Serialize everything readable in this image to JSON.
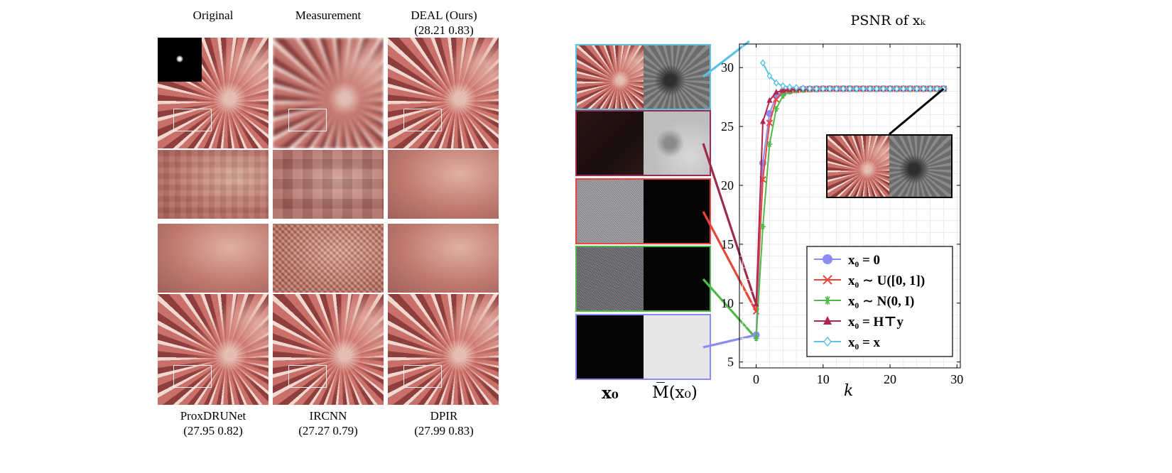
{
  "left_panel": {
    "top_titles": [
      "Original",
      "Measurement",
      "DEAL (Ours)"
    ],
    "deal_score": "(28.21 0.83)",
    "bottom_titles": [
      {
        "name": "ProxDRUNet",
        "score": "(27.95 0.82)"
      },
      {
        "name": "IRCNN",
        "score": "(27.27 0.79)"
      },
      {
        "name": "DPIR",
        "score": "(27.99 0.83)"
      }
    ]
  },
  "right_panel": {
    "thumb_col_labels": [
      "x₀",
      "M̅(x₀)"
    ],
    "thumb_border_colors": [
      "#5bc2e7",
      "#9b2c4c",
      "#e8453c",
      "#4fb848",
      "#8b8cf0"
    ]
  },
  "chart_data": {
    "type": "line",
    "title": "PSNR of xₖ",
    "xlabel": "k",
    "ylabel": "",
    "xlim": [
      -2.5,
      30.5
    ],
    "ylim": [
      4.5,
      32
    ],
    "xticks": [
      0,
      10,
      20,
      30
    ],
    "yticks": [
      5,
      10,
      15,
      20,
      25,
      30
    ],
    "grid": true,
    "legend_position": "bottom-right",
    "series": [
      {
        "name": "x₀ = 0",
        "color": "#8b8cf0",
        "marker": "circle",
        "x": [
          0,
          1,
          2,
          3,
          4,
          5,
          6,
          7,
          8,
          9,
          10,
          11,
          12,
          13,
          14,
          15,
          16,
          17,
          18,
          19,
          20,
          21,
          22,
          23,
          24,
          25,
          26,
          27,
          28
        ],
        "y": [
          7.3,
          21.9,
          26.1,
          27.6,
          28.0,
          28.1,
          28.15,
          28.17,
          28.18,
          28.19,
          28.2,
          28.2,
          28.2,
          28.2,
          28.2,
          28.2,
          28.2,
          28.2,
          28.2,
          28.2,
          28.2,
          28.2,
          28.2,
          28.2,
          28.2,
          28.2,
          28.2,
          28.2,
          28.2
        ]
      },
      {
        "name": "x₀ ∼ U([0, 1])",
        "color": "#e8453c",
        "marker": "x",
        "x": [
          0,
          1,
          2,
          3,
          4,
          5,
          6,
          7,
          8,
          9,
          10,
          11,
          12,
          13,
          14,
          15,
          16,
          17,
          18,
          19,
          20,
          21,
          22,
          23,
          24,
          25,
          26,
          27,
          28
        ],
        "y": [
          9.3,
          20.5,
          25.3,
          27.3,
          27.9,
          28.05,
          28.1,
          28.15,
          28.17,
          28.18,
          28.19,
          28.2,
          28.2,
          28.2,
          28.2,
          28.2,
          28.2,
          28.2,
          28.2,
          28.2,
          28.2,
          28.2,
          28.2,
          28.2,
          28.2,
          28.2,
          28.2,
          28.2,
          28.2
        ]
      },
      {
        "name": "x₀ ∼ N(0, I)",
        "color": "#4fb848",
        "marker": "star",
        "x": [
          0,
          1,
          2,
          3,
          4,
          5,
          6,
          7,
          8,
          9,
          10,
          11,
          12,
          13,
          14,
          15,
          16,
          17,
          18,
          19,
          20,
          21,
          22,
          23,
          24,
          25,
          26,
          27,
          28
        ],
        "y": [
          7.0,
          16.5,
          23.5,
          26.5,
          27.6,
          27.95,
          28.05,
          28.1,
          28.15,
          28.17,
          28.18,
          28.19,
          28.2,
          28.2,
          28.2,
          28.2,
          28.2,
          28.2,
          28.2,
          28.2,
          28.2,
          28.2,
          28.2,
          28.2,
          28.2,
          28.2,
          28.2,
          28.2,
          28.2
        ]
      },
      {
        "name": "x₀ = H⊤y",
        "color": "#b0244e",
        "marker": "triangle",
        "x": [
          0,
          1,
          2,
          3,
          4,
          5,
          6,
          7,
          8,
          9,
          10,
          11,
          12,
          13,
          14,
          15,
          16,
          17,
          18,
          19,
          20,
          21,
          22,
          23,
          24,
          25,
          26,
          27,
          28
        ],
        "y": [
          9.9,
          25.4,
          27.2,
          27.9,
          28.05,
          28.1,
          28.15,
          28.17,
          28.18,
          28.19,
          28.2,
          28.2,
          28.2,
          28.2,
          28.2,
          28.2,
          28.2,
          28.2,
          28.2,
          28.2,
          28.2,
          28.2,
          28.2,
          28.2,
          28.2,
          28.2,
          28.2,
          28.2,
          28.2
        ]
      },
      {
        "name": "x₀ = x",
        "color": "#5bc2e7",
        "marker": "diamond",
        "x": [
          1,
          2,
          3,
          4,
          5,
          6,
          7,
          8,
          9,
          10,
          11,
          12,
          13,
          14,
          15,
          16,
          17,
          18,
          19,
          20,
          21,
          22,
          23,
          24,
          25,
          26,
          27,
          28
        ],
        "y": [
          30.4,
          29.3,
          28.7,
          28.45,
          28.35,
          28.3,
          28.25,
          28.22,
          28.2,
          28.2,
          28.2,
          28.2,
          28.2,
          28.2,
          28.2,
          28.2,
          28.2,
          28.2,
          28.2,
          28.2,
          28.2,
          28.2,
          28.2,
          28.2,
          28.2,
          28.2,
          28.2,
          28.2
        ]
      }
    ]
  }
}
